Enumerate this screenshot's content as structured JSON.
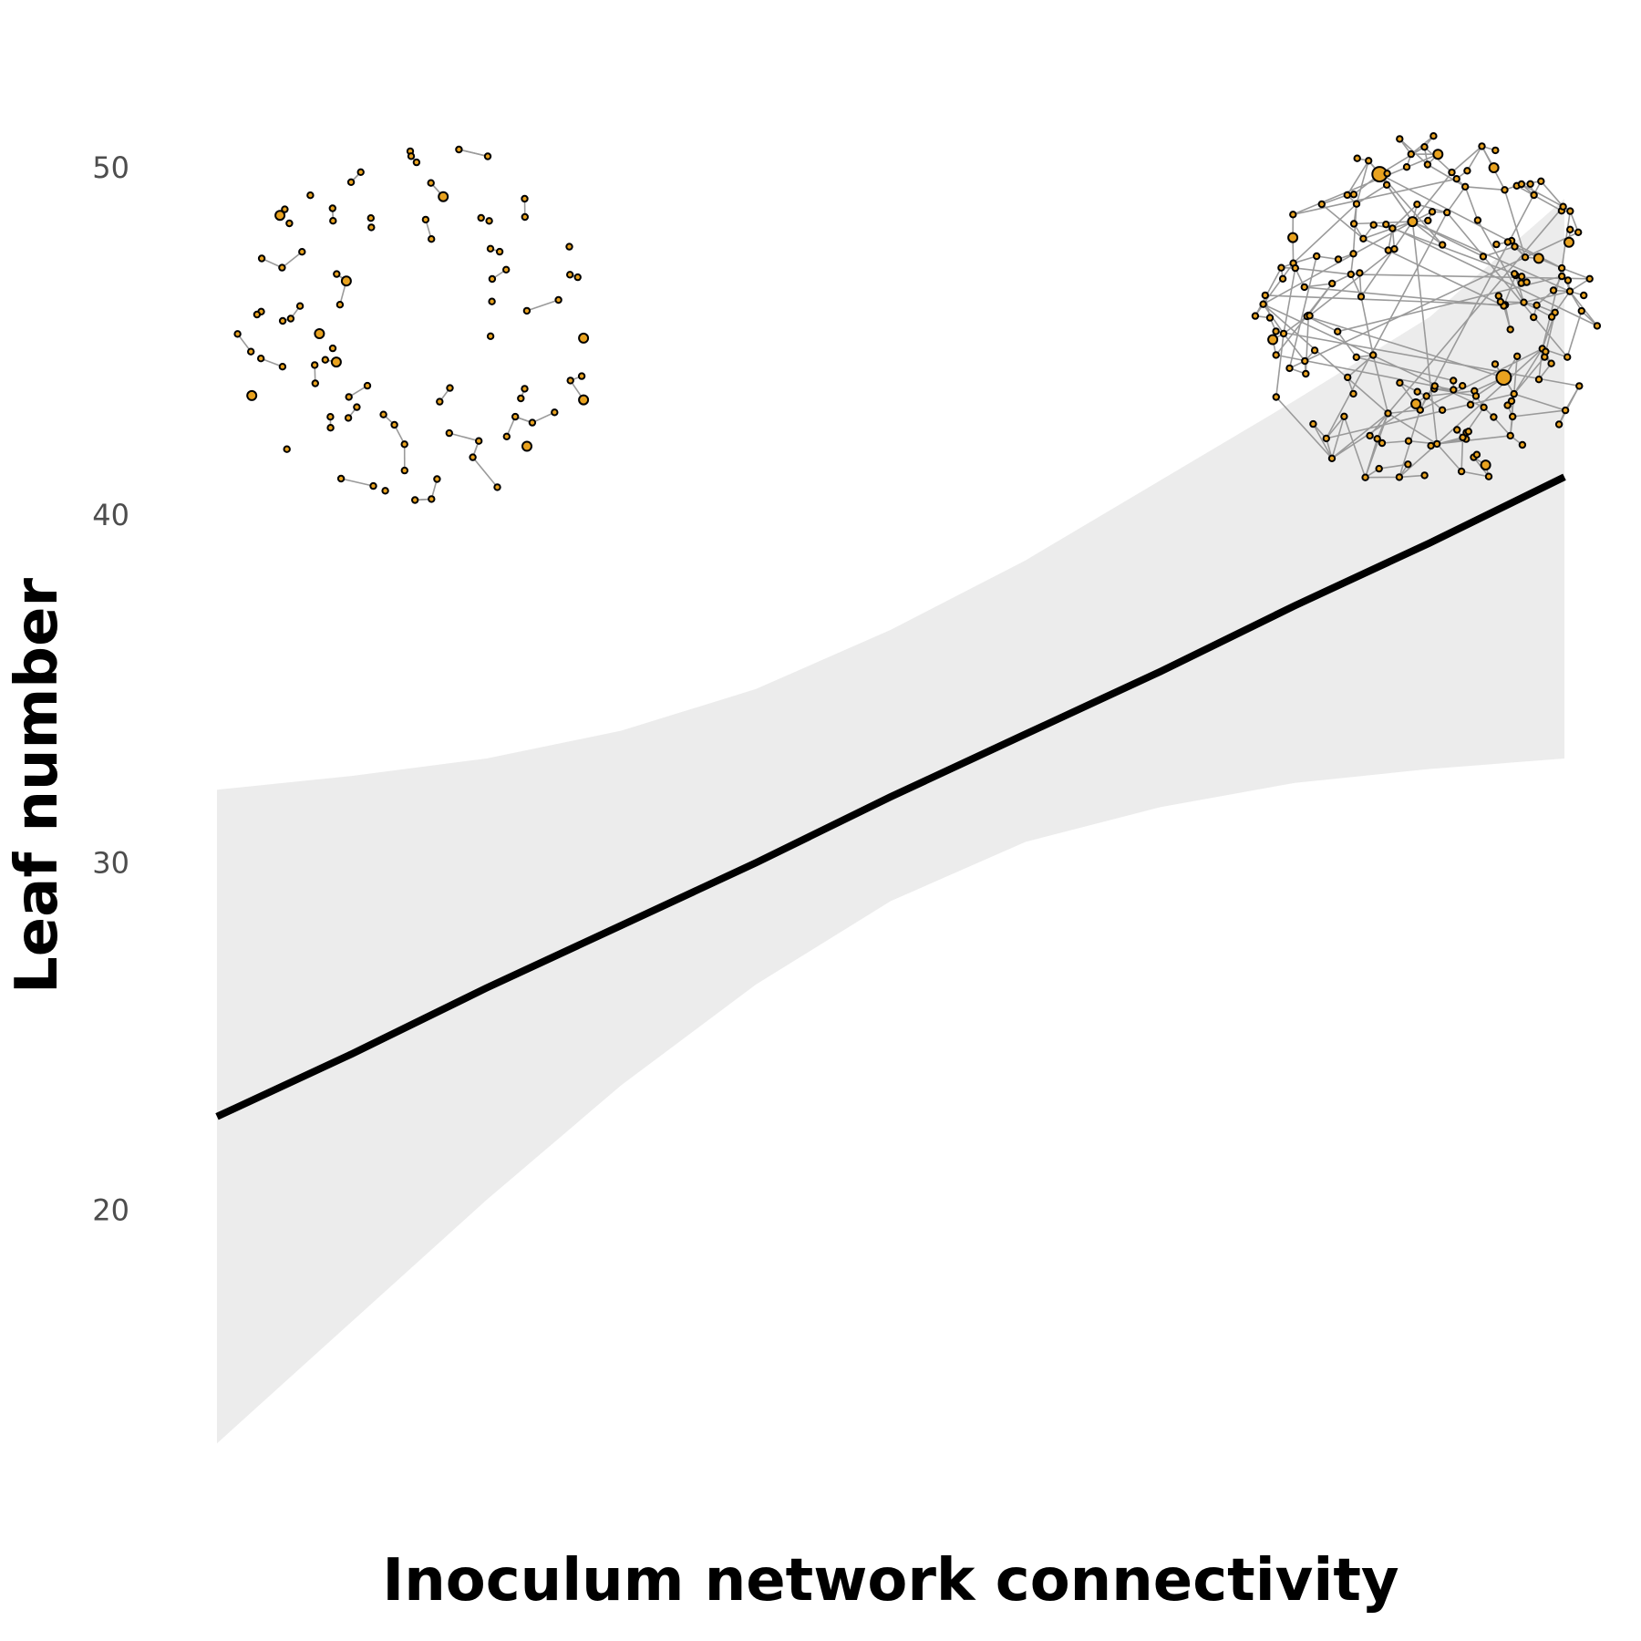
{
  "chart_data": {
    "type": "line",
    "title": "",
    "xlabel": "Inoculum network connectivity",
    "ylabel": "Leaf number",
    "x_range": [
      0,
      1
    ],
    "ylim": [
      11.6,
      53.3
    ],
    "y_ticks": [
      20,
      30,
      40,
      50
    ],
    "y_tick_labels": [
      "20",
      "30",
      "40",
      "50"
    ],
    "x_ticks": [],
    "grid": false,
    "legend": "none",
    "series": [
      {
        "x": [
          0,
          0.1,
          0.2,
          0.3,
          0.4,
          0.5,
          0.6,
          0.7,
          0.8,
          0.9,
          1.0
        ],
        "y": [
          22.7,
          24.5,
          26.4,
          28.2,
          30.0,
          31.9,
          33.7,
          35.5,
          37.4,
          39.2,
          41.1
        ],
        "ci_lower": [
          13.3,
          16.8,
          20.3,
          23.6,
          26.5,
          28.9,
          30.6,
          31.6,
          32.3,
          32.7,
          33.0
        ],
        "ci_upper": [
          32.1,
          32.5,
          33.0,
          33.8,
          35.0,
          36.7,
          38.7,
          41.0,
          43.3,
          45.7,
          49.1
        ]
      }
    ],
    "colors": {
      "line": "#000000",
      "ribbon": "#ececec",
      "node_fill": "#e8a21f",
      "edge": "#9a9a9a"
    },
    "insets": [
      {
        "description_id": "low-connectivity-network",
        "x": 0.15,
        "y": 45.5,
        "edge_density": "sparse"
      },
      {
        "description_id": "high-connectivity-network",
        "x": 0.9,
        "y": 45.8,
        "edge_density": "dense"
      }
    ]
  }
}
